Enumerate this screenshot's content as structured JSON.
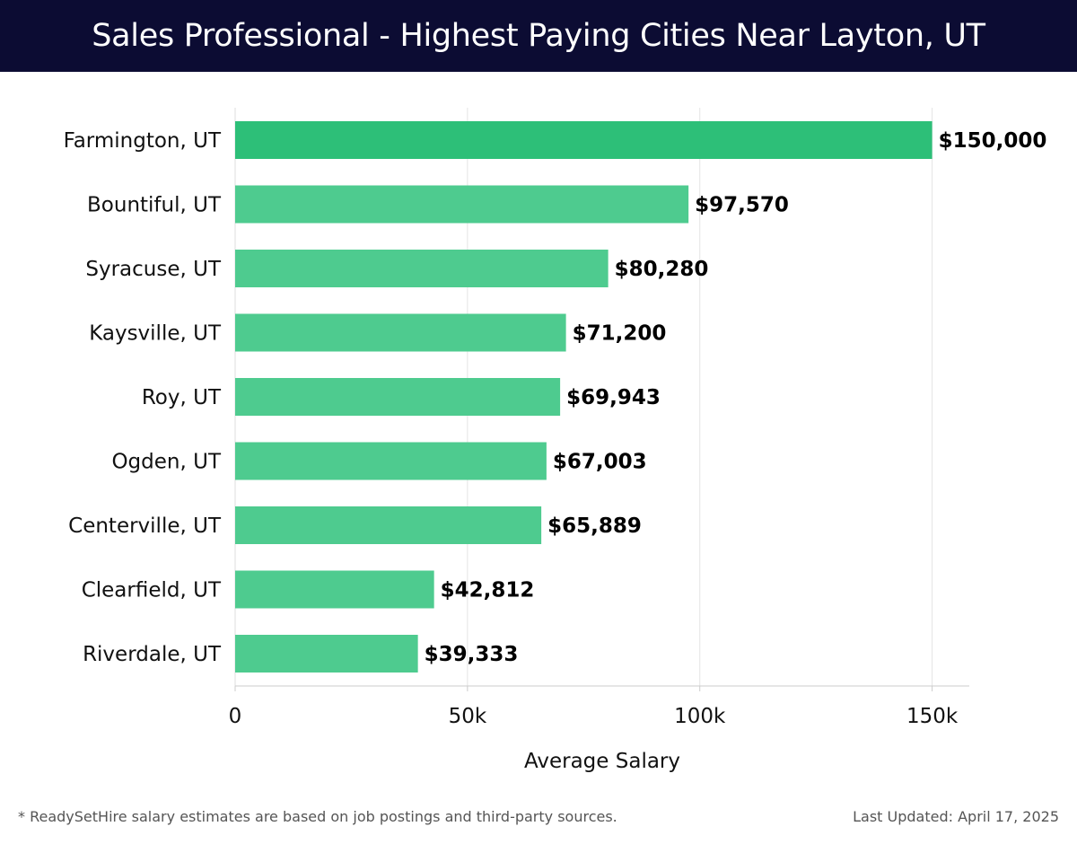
{
  "header": {
    "title": "Sales Professional - Highest Paying Cities Near Layton, UT"
  },
  "chart_data": {
    "type": "bar",
    "orientation": "horizontal",
    "categories": [
      "Farmington, UT",
      "Bountiful, UT",
      "Syracuse, UT",
      "Kaysville, UT",
      "Roy, UT",
      "Ogden, UT",
      "Centerville, UT",
      "Clearfield, UT",
      "Riverdale, UT"
    ],
    "values": [
      150000,
      97570,
      80280,
      71200,
      69943,
      67003,
      65889,
      42812,
      39333
    ],
    "value_labels": [
      "$150,000",
      "$97,570",
      "$80,280",
      "$71,200",
      "$69,943",
      "$67,003",
      "$65,889",
      "$42,812",
      "$39,333"
    ],
    "xlabel": "Average Salary",
    "xlim": [
      0,
      158000
    ],
    "xticks": [
      0,
      50000,
      100000,
      150000
    ],
    "xtick_labels": [
      "0",
      "50k",
      "100k",
      "150k"
    ],
    "grid": "vertical",
    "highlight_color": "#2dbf78",
    "bar_color": "#4ecb8f"
  },
  "footer": {
    "note": "* ReadySetHire salary estimates are based on job postings and third-party sources.",
    "updated": "Last Updated: April 17, 2025"
  }
}
